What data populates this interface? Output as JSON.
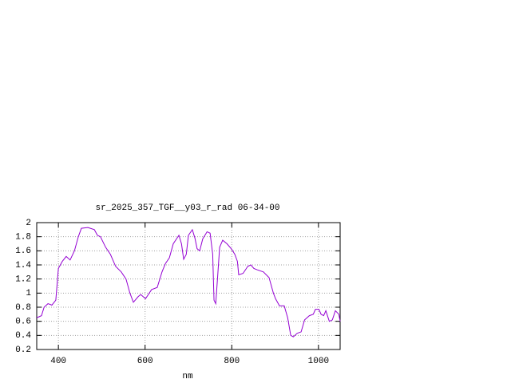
{
  "chart_data": {
    "type": "line",
    "title": "sr_2025_357_TGF__y03_r_rad 06-34-00",
    "x_label": "nm",
    "xlim": [
      350,
      1050
    ],
    "xticks": [
      400,
      600,
      800,
      1000
    ],
    "ylim": [
      0.2,
      2
    ],
    "yticks": [
      0.2,
      0.4,
      0.6,
      0.8,
      1,
      1.2,
      1.4,
      1.6,
      1.8,
      2
    ],
    "grid": true,
    "x": [
      350,
      361,
      367,
      376,
      385,
      394,
      400,
      409,
      418,
      427,
      437,
      446,
      453,
      468,
      483,
      490,
      497,
      509,
      520,
      532,
      545,
      556,
      565,
      573,
      584,
      590,
      601,
      615,
      628,
      639,
      647,
      656,
      665,
      678,
      684,
      689,
      695,
      700,
      709,
      715,
      720,
      726,
      733,
      743,
      750,
      756,
      759,
      763,
      767,
      772,
      779,
      789,
      800,
      807,
      813,
      816,
      826,
      837,
      844,
      851,
      859,
      873,
      886,
      896,
      901,
      910,
      921,
      929,
      936,
      942,
      951,
      960,
      968,
      979,
      988,
      993,
      1001,
      1006,
      1012,
      1017,
      1025,
      1032,
      1039,
      1047,
      1050
    ],
    "series": [
      {
        "name": "sr_2025_357_TGF__y03_r_rad",
        "color": "#9400d3",
        "values": [
          0.65,
          0.68,
          0.8,
          0.85,
          0.83,
          0.9,
          1.35,
          1.45,
          1.52,
          1.47,
          1.6,
          1.8,
          1.92,
          1.93,
          1.9,
          1.82,
          1.8,
          1.65,
          1.55,
          1.38,
          1.3,
          1.2,
          1.0,
          0.87,
          0.95,
          0.98,
          0.92,
          1.05,
          1.08,
          1.3,
          1.42,
          1.5,
          1.7,
          1.82,
          1.7,
          1.48,
          1.55,
          1.82,
          1.9,
          1.78,
          1.63,
          1.6,
          1.77,
          1.87,
          1.85,
          1.55,
          0.9,
          0.85,
          1.2,
          1.65,
          1.75,
          1.7,
          1.62,
          1.55,
          1.45,
          1.26,
          1.28,
          1.38,
          1.4,
          1.35,
          1.33,
          1.3,
          1.22,
          1.0,
          0.92,
          0.82,
          0.82,
          0.65,
          0.4,
          0.38,
          0.43,
          0.45,
          0.62,
          0.68,
          0.7,
          0.77,
          0.77,
          0.7,
          0.68,
          0.75,
          0.6,
          0.62,
          0.75,
          0.7,
          0.6
        ]
      }
    ]
  }
}
